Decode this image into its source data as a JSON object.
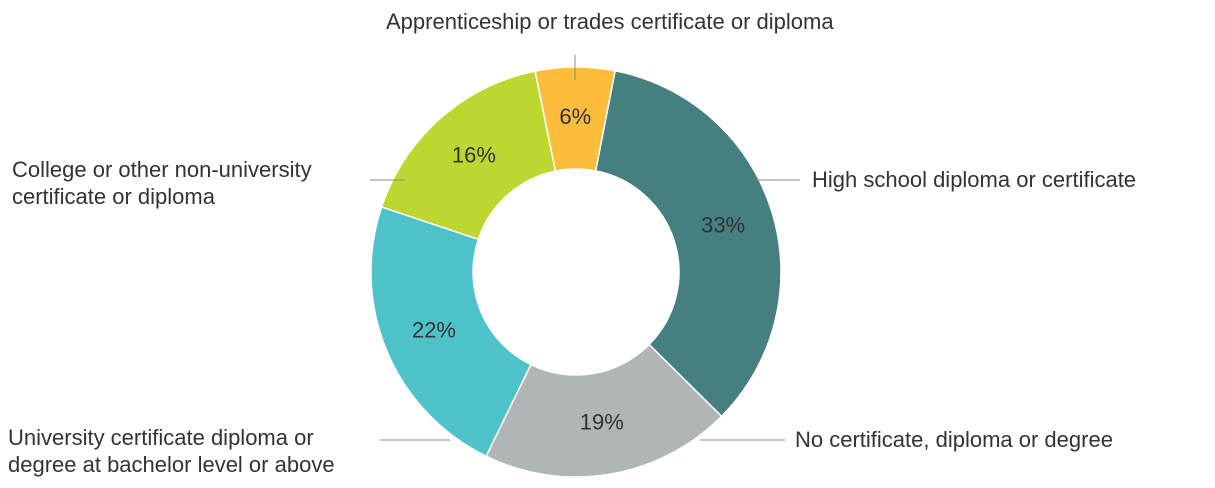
{
  "chart_data": {
    "type": "donut",
    "categories": [
      "High school diploma or certificate",
      "No certificate, diploma or degree",
      "University certificate diploma or degree at bachelor level or above",
      "College or other non-university certificate or diploma",
      "Apprenticeship or trades certificate or diploma"
    ],
    "values": [
      33,
      19,
      22,
      16,
      6
    ],
    "value_labels": [
      "33%",
      "19%",
      "22%",
      "16%",
      "6%"
    ],
    "colors": [
      "#457f7f",
      "#b0b5b8",
      "#4dc3c9",
      "#c0d630",
      "#fbbd3b"
    ]
  }
}
